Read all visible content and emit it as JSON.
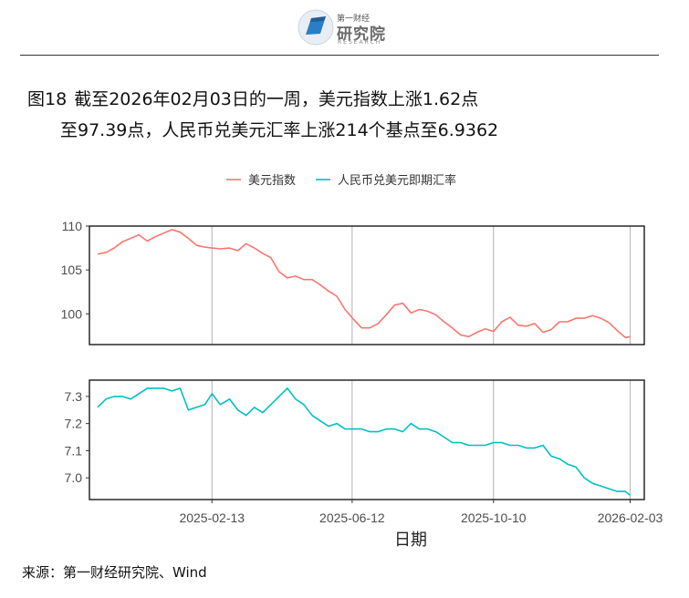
{
  "logo": {
    "small_text": "第一财经",
    "big_text": "研究院",
    "sub_text": "RESEARCH",
    "colors": {
      "mark": "#2a7fc4",
      "mark_dark": "#1d5f9a",
      "text": "#6a6a6a"
    }
  },
  "title": {
    "figure_label": "图18",
    "line1": "截至2026年02月03日的一周，美元指数上涨1.62点",
    "line2": "至97.39点，人民币兑美元汇率上涨214个基点至6.9362"
  },
  "source": "来源：第一财经研究院、Wind",
  "chart_data": {
    "type": "line",
    "xlabel": "日期",
    "x_ticks": [
      "2025-02-13",
      "2025-06-12",
      "2025-10-10",
      "2026-02-03"
    ],
    "x_range": [
      "2024-11-01",
      "2026-02-15"
    ],
    "legend_position": "top",
    "grid": "vertical lines at x ticks",
    "colors": {
      "美元指数": "#F8766D",
      "人民币兑美元即期汇率": "#00BFC4"
    },
    "series": [
      {
        "name": "美元指数",
        "ylim": [
          96.5,
          110
        ],
        "y_ticks": [
          100,
          105,
          110
        ],
        "points": [
          [
            "2024-11-08",
            106.8
          ],
          [
            "2024-11-15",
            107.0
          ],
          [
            "2024-11-22",
            107.5
          ],
          [
            "2024-11-29",
            108.2
          ],
          [
            "2024-12-06",
            108.6
          ],
          [
            "2024-12-13",
            109.0
          ],
          [
            "2024-12-20",
            108.3
          ],
          [
            "2024-12-27",
            108.8
          ],
          [
            "2025-01-03",
            109.2
          ],
          [
            "2025-01-10",
            109.6
          ],
          [
            "2025-01-17",
            109.3
          ],
          [
            "2025-01-24",
            108.6
          ],
          [
            "2025-01-31",
            107.8
          ],
          [
            "2025-02-07",
            107.6
          ],
          [
            "2025-02-13",
            107.5
          ],
          [
            "2025-02-20",
            107.4
          ],
          [
            "2025-02-28",
            107.5
          ],
          [
            "2025-03-07",
            107.2
          ],
          [
            "2025-03-14",
            108.0
          ],
          [
            "2025-03-21",
            107.5
          ],
          [
            "2025-03-28",
            106.9
          ],
          [
            "2025-04-04",
            106.4
          ],
          [
            "2025-04-11",
            104.8
          ],
          [
            "2025-04-18",
            104.1
          ],
          [
            "2025-04-25",
            104.3
          ],
          [
            "2025-05-02",
            103.9
          ],
          [
            "2025-05-09",
            103.9
          ],
          [
            "2025-05-16",
            103.3
          ],
          [
            "2025-05-23",
            102.6
          ],
          [
            "2025-05-30",
            102.0
          ],
          [
            "2025-06-06",
            100.5
          ],
          [
            "2025-06-13",
            99.4
          ],
          [
            "2025-06-20",
            98.4
          ],
          [
            "2025-06-27",
            98.4
          ],
          [
            "2025-07-04",
            98.9
          ],
          [
            "2025-07-11",
            99.9
          ],
          [
            "2025-07-18",
            101.0
          ],
          [
            "2025-07-25",
            101.2
          ],
          [
            "2025-08-01",
            100.1
          ],
          [
            "2025-08-08",
            100.5
          ],
          [
            "2025-08-15",
            100.3
          ],
          [
            "2025-08-22",
            99.9
          ],
          [
            "2025-08-29",
            99.1
          ],
          [
            "2025-09-05",
            98.4
          ],
          [
            "2025-09-12",
            97.6
          ],
          [
            "2025-09-19",
            97.4
          ],
          [
            "2025-09-26",
            97.9
          ],
          [
            "2025-10-03",
            98.3
          ],
          [
            "2025-10-10",
            98.0
          ],
          [
            "2025-10-17",
            99.1
          ],
          [
            "2025-10-24",
            99.6
          ],
          [
            "2025-10-31",
            98.7
          ],
          [
            "2025-11-07",
            98.6
          ],
          [
            "2025-11-14",
            98.9
          ],
          [
            "2025-11-21",
            97.9
          ],
          [
            "2025-11-28",
            98.2
          ],
          [
            "2025-12-05",
            99.1
          ],
          [
            "2025-12-12",
            99.1
          ],
          [
            "2025-12-19",
            99.5
          ],
          [
            "2025-12-26",
            99.5
          ],
          [
            "2026-01-02",
            99.8
          ],
          [
            "2026-01-09",
            99.5
          ],
          [
            "2026-01-16",
            99.0
          ],
          [
            "2026-01-23",
            98.1
          ],
          [
            "2026-01-30",
            97.3
          ],
          [
            "2026-02-03",
            97.39
          ]
        ]
      },
      {
        "name": "人民币兑美元即期汇率",
        "ylim": [
          6.92,
          7.36
        ],
        "y_ticks": [
          7.0,
          7.1,
          7.2,
          7.3
        ],
        "points": [
          [
            "2024-11-08",
            7.26
          ],
          [
            "2024-11-15",
            7.29
          ],
          [
            "2024-11-22",
            7.3
          ],
          [
            "2024-11-29",
            7.3
          ],
          [
            "2024-12-06",
            7.29
          ],
          [
            "2024-12-13",
            7.31
          ],
          [
            "2024-12-20",
            7.33
          ],
          [
            "2024-12-27",
            7.33
          ],
          [
            "2025-01-03",
            7.33
          ],
          [
            "2025-01-10",
            7.32
          ],
          [
            "2025-01-17",
            7.33
          ],
          [
            "2025-01-24",
            7.25
          ],
          [
            "2025-01-31",
            7.26
          ],
          [
            "2025-02-07",
            7.27
          ],
          [
            "2025-02-13",
            7.31
          ],
          [
            "2025-02-20",
            7.27
          ],
          [
            "2025-02-28",
            7.29
          ],
          [
            "2025-03-07",
            7.25
          ],
          [
            "2025-03-14",
            7.23
          ],
          [
            "2025-03-21",
            7.26
          ],
          [
            "2025-03-28",
            7.24
          ],
          [
            "2025-04-04",
            7.27
          ],
          [
            "2025-04-11",
            7.3
          ],
          [
            "2025-04-18",
            7.33
          ],
          [
            "2025-04-25",
            7.29
          ],
          [
            "2025-05-02",
            7.27
          ],
          [
            "2025-05-09",
            7.23
          ],
          [
            "2025-05-16",
            7.21
          ],
          [
            "2025-05-23",
            7.19
          ],
          [
            "2025-05-30",
            7.2
          ],
          [
            "2025-06-06",
            7.18
          ],
          [
            "2025-06-13",
            7.18
          ],
          [
            "2025-06-20",
            7.18
          ],
          [
            "2025-06-27",
            7.17
          ],
          [
            "2025-07-04",
            7.17
          ],
          [
            "2025-07-11",
            7.18
          ],
          [
            "2025-07-18",
            7.18
          ],
          [
            "2025-07-25",
            7.17
          ],
          [
            "2025-08-01",
            7.2
          ],
          [
            "2025-08-08",
            7.18
          ],
          [
            "2025-08-15",
            7.18
          ],
          [
            "2025-08-22",
            7.17
          ],
          [
            "2025-08-29",
            7.15
          ],
          [
            "2025-09-05",
            7.13
          ],
          [
            "2025-09-12",
            7.13
          ],
          [
            "2025-09-19",
            7.12
          ],
          [
            "2025-09-26",
            7.12
          ],
          [
            "2025-10-03",
            7.12
          ],
          [
            "2025-10-10",
            7.13
          ],
          [
            "2025-10-17",
            7.13
          ],
          [
            "2025-10-24",
            7.12
          ],
          [
            "2025-10-31",
            7.12
          ],
          [
            "2025-11-07",
            7.11
          ],
          [
            "2025-11-14",
            7.11
          ],
          [
            "2025-11-21",
            7.12
          ],
          [
            "2025-11-28",
            7.08
          ],
          [
            "2025-12-05",
            7.07
          ],
          [
            "2025-12-12",
            7.05
          ],
          [
            "2025-12-19",
            7.04
          ],
          [
            "2025-12-26",
            7.0
          ],
          [
            "2026-01-02",
            6.98
          ],
          [
            "2026-01-09",
            6.97
          ],
          [
            "2026-01-16",
            6.96
          ],
          [
            "2026-01-23",
            6.95
          ],
          [
            "2026-01-30",
            6.95
          ],
          [
            "2026-02-03",
            6.9362
          ]
        ]
      }
    ]
  }
}
